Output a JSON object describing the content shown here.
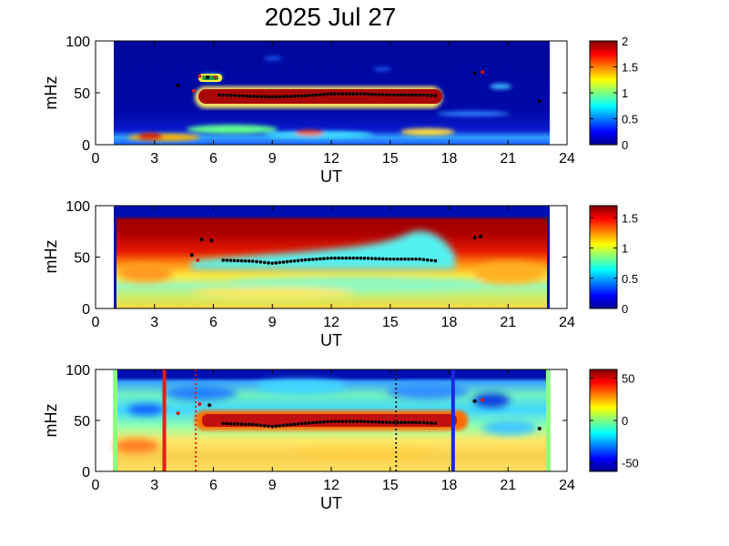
{
  "title": "2025 Jul 27",
  "chart_data": [
    {
      "type": "heatmap",
      "xlabel": "UT",
      "ylabel": "mHz",
      "xlim": [
        0,
        24
      ],
      "ylim": [
        0,
        100
      ],
      "xticks": [
        "0",
        "3",
        "6",
        "9",
        "12",
        "15",
        "18",
        "21",
        "24"
      ],
      "yticks": [
        "0",
        "50",
        "100"
      ],
      "colorbar": {
        "range": [
          0,
          2
        ],
        "ticks": [
          "0",
          "0.5",
          "1",
          "1.5",
          "2"
        ]
      },
      "data_span_ut": [
        1,
        23
      ],
      "ridge": [
        {
          "ut": 6.3,
          "mhz": 48
        },
        {
          "ut": 7.5,
          "mhz": 47
        },
        {
          "ut": 9,
          "mhz": 46
        },
        {
          "ut": 10.5,
          "mhz": 47
        },
        {
          "ut": 12,
          "mhz": 49
        },
        {
          "ut": 13.5,
          "mhz": 49
        },
        {
          "ut": 15,
          "mhz": 48
        },
        {
          "ut": 16.5,
          "mhz": 48
        },
        {
          "ut": 17.5,
          "mhz": 47
        }
      ],
      "extra_points": [
        {
          "ut": 5.3,
          "mhz": 66
        },
        {
          "ut": 5.7,
          "mhz": 65
        },
        {
          "ut": 6.1,
          "mhz": 65
        },
        {
          "ut": 4.2,
          "mhz": 57
        },
        {
          "ut": 5.0,
          "mhz": 52
        },
        {
          "ut": 19.3,
          "mhz": 69
        },
        {
          "ut": 19.7,
          "mhz": 70
        },
        {
          "ut": 22.6,
          "mhz": 42
        }
      ]
    },
    {
      "type": "heatmap",
      "xlabel": "UT",
      "ylabel": "mHz",
      "xlim": [
        0,
        24
      ],
      "ylim": [
        0,
        100
      ],
      "xticks": [
        "0",
        "3",
        "6",
        "9",
        "12",
        "15",
        "18",
        "21",
        "24"
      ],
      "yticks": [
        "0",
        "50",
        "100"
      ],
      "colorbar": {
        "range": [
          0,
          1.7
        ],
        "ticks": [
          "0",
          "0.5",
          "1",
          "1.5"
        ]
      },
      "data_span_ut": [
        1,
        23
      ],
      "ridge": [
        {
          "ut": 6.5,
          "mhz": 47
        },
        {
          "ut": 8,
          "mhz": 46
        },
        {
          "ut": 9,
          "mhz": 44
        },
        {
          "ut": 10.5,
          "mhz": 47
        },
        {
          "ut": 12,
          "mhz": 49
        },
        {
          "ut": 13.5,
          "mhz": 49
        },
        {
          "ut": 15,
          "mhz": 48
        },
        {
          "ut": 16.5,
          "mhz": 48
        },
        {
          "ut": 17.5,
          "mhz": 46
        }
      ],
      "extra_points": [
        {
          "ut": 5.4,
          "mhz": 67
        },
        {
          "ut": 5.9,
          "mhz": 66
        },
        {
          "ut": 4.9,
          "mhz": 52
        },
        {
          "ut": 5.2,
          "mhz": 47
        },
        {
          "ut": 19.3,
          "mhz": 69
        },
        {
          "ut": 19.6,
          "mhz": 70
        }
      ]
    },
    {
      "type": "heatmap",
      "xlabel": "UT",
      "ylabel": "mHz",
      "xlim": [
        0,
        24
      ],
      "ylim": [
        0,
        100
      ],
      "xticks": [
        "0",
        "3",
        "6",
        "9",
        "12",
        "15",
        "18",
        "21",
        "24"
      ],
      "yticks": [
        "0",
        "50",
        "100"
      ],
      "colorbar": {
        "range": [
          -60,
          60
        ],
        "ticks": [
          "-50",
          "0",
          "50"
        ]
      },
      "data_span_ut": [
        1,
        23
      ],
      "ridge": [
        {
          "ut": 6.5,
          "mhz": 47
        },
        {
          "ut": 8,
          "mhz": 46
        },
        {
          "ut": 9,
          "mhz": 44
        },
        {
          "ut": 10.5,
          "mhz": 47
        },
        {
          "ut": 12,
          "mhz": 49
        },
        {
          "ut": 13.5,
          "mhz": 49
        },
        {
          "ut": 15,
          "mhz": 48
        },
        {
          "ut": 16.5,
          "mhz": 48
        },
        {
          "ut": 17.5,
          "mhz": 47
        }
      ],
      "extra_points": [
        {
          "ut": 5.3,
          "mhz": 66
        },
        {
          "ut": 5.8,
          "mhz": 65
        },
        {
          "ut": 4.2,
          "mhz": 57
        },
        {
          "ut": 19.3,
          "mhz": 69
        },
        {
          "ut": 19.7,
          "mhz": 70
        },
        {
          "ut": 22.6,
          "mhz": 42
        }
      ],
      "vertical_markers": [
        {
          "ut": 3.5,
          "style": "solid",
          "color": "#e0201a"
        },
        {
          "ut": 5.1,
          "style": "dotted",
          "color": "#e0201a"
        },
        {
          "ut": 15.3,
          "style": "dotted",
          "color": "#222222"
        },
        {
          "ut": 18.2,
          "style": "solid",
          "color": "#1828e0"
        }
      ]
    }
  ]
}
